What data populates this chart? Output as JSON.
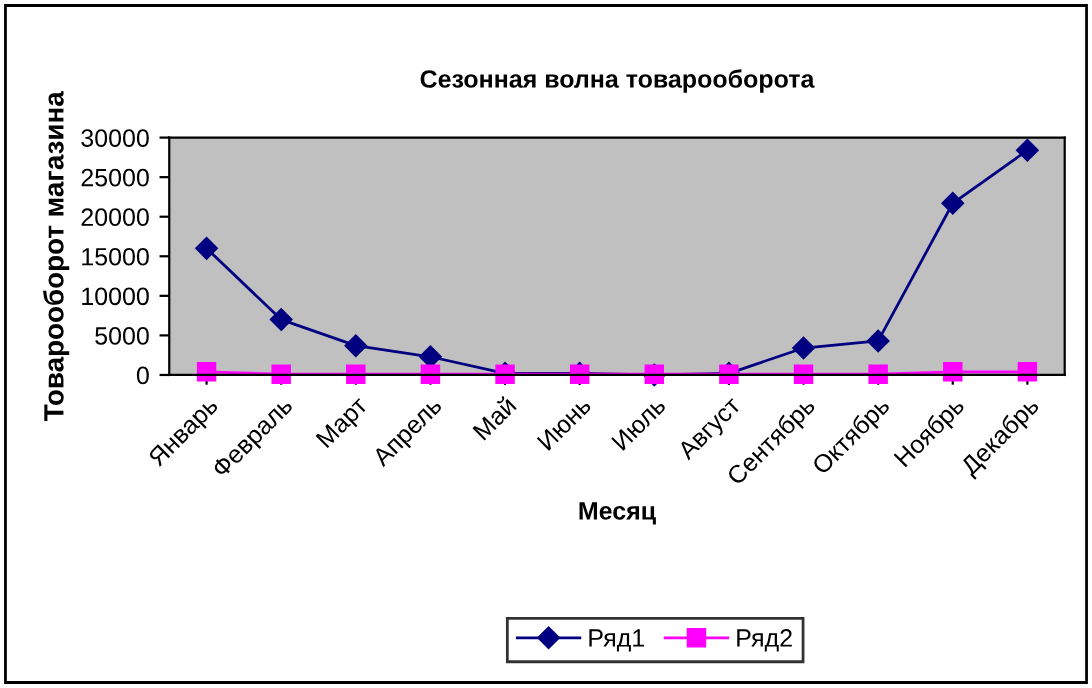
{
  "chart_data": {
    "type": "line",
    "title": "Сезонная волна товарооборота",
    "xlabel": "Месяц",
    "ylabel": "Товарооборот магазина",
    "categories": [
      "Январь",
      "Февраль",
      "Март",
      "Апрель",
      "Май",
      "Июнь",
      "Июль",
      "Август",
      "Сентябрь",
      "Октябрь",
      "Ноябрь",
      "Декабрь"
    ],
    "series": [
      {
        "name": "Ряд1",
        "color": "#000080",
        "marker": "diamond",
        "values": [
          16000,
          7000,
          3700,
          2300,
          200,
          200,
          0,
          200,
          3400,
          4300,
          21700,
          28400
        ]
      },
      {
        "name": "Ряд2",
        "color": "#ff00ff",
        "marker": "square",
        "values": [
          400,
          100,
          100,
          100,
          100,
          100,
          100,
          100,
          100,
          100,
          400,
          400
        ]
      }
    ],
    "ylim": [
      0,
      30000
    ],
    "yticks": [
      0,
      5000,
      10000,
      15000,
      20000,
      25000,
      30000
    ],
    "grid": false,
    "legend": "bottom"
  }
}
